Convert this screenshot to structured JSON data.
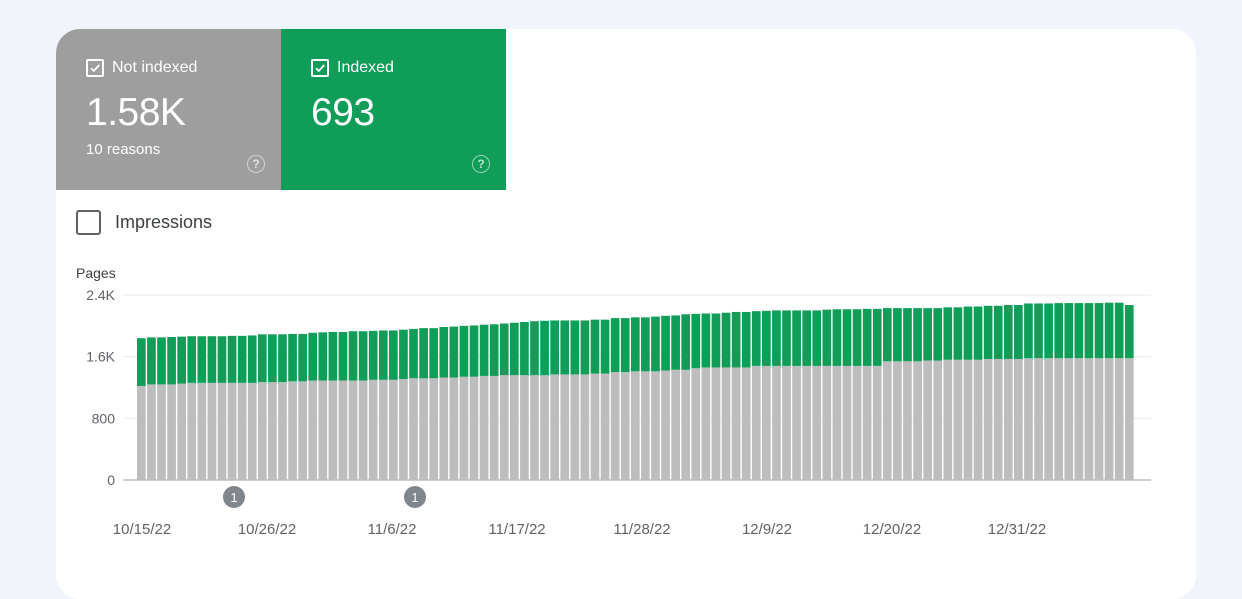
{
  "metrics": {
    "not_indexed": {
      "label": "Not indexed",
      "value": "1.58K",
      "sub": "10 reasons",
      "color": "#9e9e9e"
    },
    "indexed": {
      "label": "Indexed",
      "value": "693",
      "color": "#0f9d58"
    }
  },
  "impressions": {
    "label": "Impressions"
  },
  "icons": {
    "checkbox": "checkbox-checked-icon",
    "help": "help-circle-icon",
    "annotation": "annotation-marker"
  },
  "chart_data": {
    "type": "bar",
    "stacked": true,
    "ylabel": "Pages",
    "yticks": [
      "2.4K",
      "1.6K",
      "800",
      "0"
    ],
    "ylim": [
      0,
      2400
    ],
    "xticks": [
      "10/15/22",
      "10/26/22",
      "11/6/22",
      "11/17/22",
      "11/28/22",
      "12/9/22",
      "12/20/22",
      "12/31/22"
    ],
    "annotations": [
      {
        "x": "10/23/22",
        "label": "1"
      },
      {
        "x": "11/7/22",
        "label": "1"
      }
    ],
    "series": [
      {
        "name": "Not indexed",
        "color": "#bdbdbd",
        "values": [
          1220,
          1240,
          1240,
          1240,
          1250,
          1260,
          1260,
          1260,
          1260,
          1260,
          1260,
          1260,
          1270,
          1270,
          1270,
          1280,
          1280,
          1290,
          1290,
          1290,
          1290,
          1290,
          1290,
          1300,
          1300,
          1300,
          1310,
          1320,
          1320,
          1320,
          1330,
          1330,
          1340,
          1340,
          1350,
          1350,
          1360,
          1360,
          1360,
          1360,
          1360,
          1370,
          1370,
          1370,
          1370,
          1380,
          1380,
          1400,
          1400,
          1410,
          1410,
          1410,
          1420,
          1430,
          1430,
          1450,
          1460,
          1460,
          1460,
          1460,
          1460,
          1480,
          1480,
          1480,
          1480,
          1480,
          1480,
          1480,
          1480,
          1480,
          1480,
          1480,
          1480,
          1480,
          1540,
          1540,
          1540,
          1540,
          1550,
          1550,
          1560,
          1560,
          1560,
          1560,
          1570,
          1570,
          1570,
          1570,
          1580,
          1580,
          1580,
          1580,
          1580,
          1580,
          1580,
          1580,
          1580,
          1580,
          1580
        ]
      },
      {
        "name": "Indexed",
        "color": "#0f9d58",
        "values": [
          620,
          610,
          610,
          615,
          610,
          605,
          605,
          605,
          605,
          610,
          610,
          615,
          620,
          620,
          620,
          615,
          615,
          620,
          625,
          630,
          630,
          640,
          640,
          635,
          640,
          640,
          640,
          640,
          650,
          650,
          655,
          660,
          660,
          665,
          665,
          670,
          670,
          680,
          690,
          700,
          705,
          700,
          700,
          700,
          700,
          700,
          700,
          700,
          700,
          700,
          700,
          710,
          710,
          705,
          720,
          705,
          700,
          700,
          710,
          720,
          720,
          710,
          715,
          720,
          720,
          720,
          720,
          720,
          730,
          735,
          735,
          735,
          740,
          740,
          690,
          690,
          690,
          690,
          680,
          680,
          680,
          680,
          690,
          690,
          690,
          690,
          700,
          700,
          710,
          710,
          710,
          715,
          715,
          715,
          715,
          715,
          720,
          720,
          690
        ]
      }
    ]
  }
}
